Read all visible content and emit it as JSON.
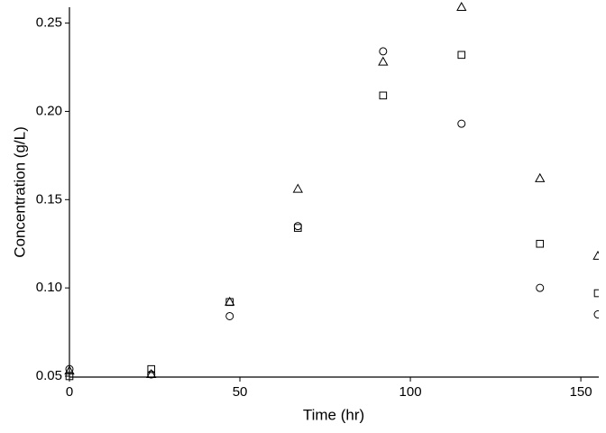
{
  "chart_data": {
    "type": "scatter",
    "x_label": "Time (hr)",
    "y_label": "Concentration (g/L)",
    "x": [
      0,
      24,
      47,
      67,
      92,
      115,
      138,
      155
    ],
    "series": [
      {
        "marker": "circle",
        "color": "#000000",
        "values": [
          0.054,
          0.051,
          0.084,
          0.135,
          0.234,
          0.193,
          0.1,
          0.085
        ]
      },
      {
        "marker": "square",
        "color": "#000000",
        "values": [
          0.05,
          0.054,
          0.092,
          0.134,
          0.209,
          0.232,
          0.125,
          0.097
        ]
      },
      {
        "marker": "triangle",
        "color": "#000000",
        "values": [
          0.053,
          0.051,
          0.092,
          0.156,
          0.228,
          0.259,
          0.162,
          0.118
        ]
      }
    ],
    "xlim": [
      0,
      155
    ],
    "xticks": [
      0,
      50,
      100,
      150
    ],
    "ylim": [
      0.05,
      0.259
    ],
    "yticks": [
      0.05,
      {
        "value": 0.1,
        "label": "0.10"
      },
      0.15,
      {
        "value": 0.2,
        "label": "0.20"
      },
      0.25
    ],
    "grid": false
  }
}
